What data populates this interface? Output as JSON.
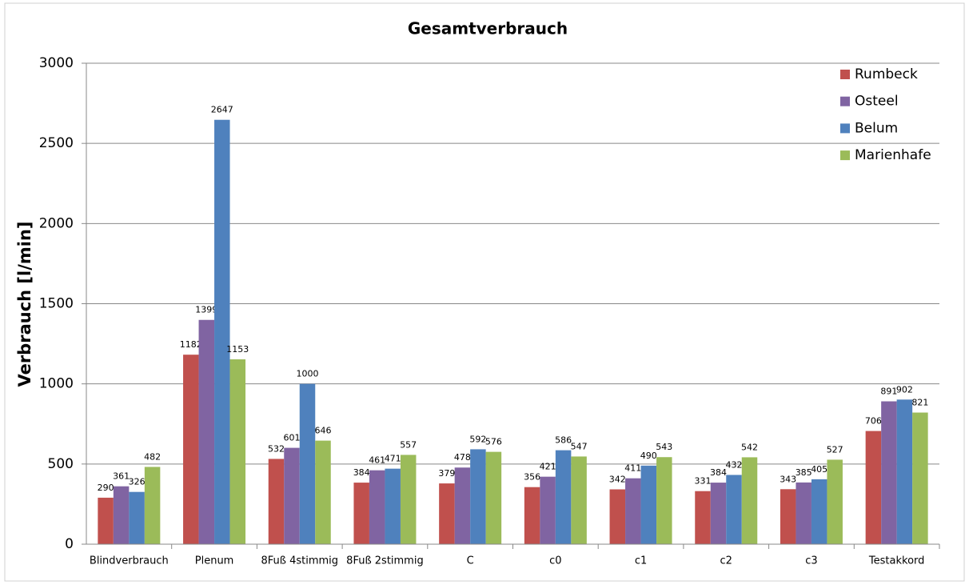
{
  "chart_data": {
    "type": "bar",
    "title": "Gesamtverbrauch",
    "y_label": "Verbrauch [l/min]",
    "categories": [
      "Blindverbrauch",
      "Plenum",
      "8Fuß 4stimmig",
      "8Fuß 2stimmig",
      "C",
      "c0",
      "c1",
      "c2",
      "c3",
      "Testakkord"
    ],
    "series": [
      {
        "name": "Rumbeck",
        "color": "#c0504d",
        "values": [
          290,
          1182,
          532,
          384,
          379,
          356,
          342,
          331,
          343,
          706
        ]
      },
      {
        "name": "Osteel",
        "color": "#8064a2",
        "values": [
          361,
          1399,
          601,
          461,
          478,
          421,
          411,
          384,
          385,
          891
        ]
      },
      {
        "name": "Belum",
        "color": "#4f81bd",
        "values": [
          326,
          2647,
          1000,
          471,
          592,
          586,
          490,
          432,
          405,
          902
        ]
      },
      {
        "name": "Marienhafe",
        "color": "#9bbb59",
        "values": [
          482,
          1153,
          646,
          557,
          576,
          547,
          543,
          542,
          527,
          821
        ]
      }
    ],
    "ylim": [
      0,
      3000
    ],
    "yticks": [
      0,
      500,
      1000,
      1500,
      2000,
      2500,
      3000
    ],
    "grid": true,
    "legend": "top-right"
  }
}
